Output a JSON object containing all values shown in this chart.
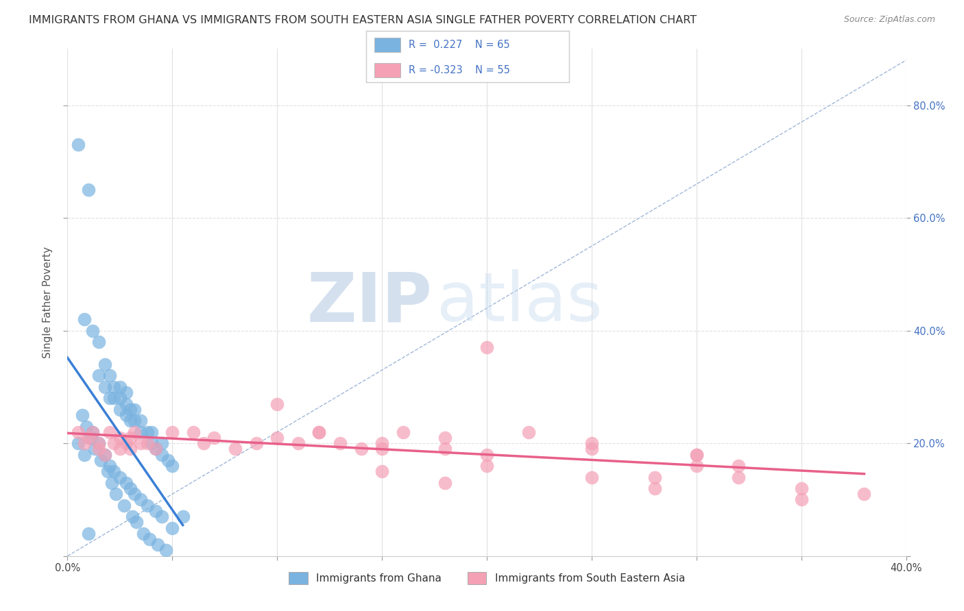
{
  "title": "IMMIGRANTS FROM GHANA VS IMMIGRANTS FROM SOUTH EASTERN ASIA SINGLE FATHER POVERTY CORRELATION CHART",
  "source": "Source: ZipAtlas.com",
  "ylabel": "Single Father Poverty",
  "legend_label1": "Immigrants from Ghana",
  "legend_label2": "Immigrants from South Eastern Asia",
  "R1": 0.227,
  "N1": 65,
  "R2": -0.323,
  "N2": 55,
  "color1": "#7ab3e0",
  "color2": "#f4a0b5",
  "trendline1_color": "#3a7fd5",
  "trendline2_color": "#e8608a",
  "xlim": [
    0.0,
    0.4
  ],
  "ylim": [
    0.0,
    0.9
  ],
  "xticks": [
    0.0,
    0.05,
    0.1,
    0.15,
    0.2,
    0.25,
    0.3,
    0.35,
    0.4
  ],
  "yticks": [
    0.0,
    0.2,
    0.4,
    0.6,
    0.8
  ],
  "xticklabels": [
    "0.0%",
    "",
    "",
    "",
    "",
    "",
    "",
    "",
    "40.0%"
  ],
  "yticklabels": [
    "",
    "20.0%",
    "40.0%",
    "60.0%",
    "80.0%"
  ],
  "watermark_zip": "ZIP",
  "watermark_atlas": "atlas",
  "background_color": "#ffffff",
  "grid_color": "#e0e0e0",
  "title_fontsize": 11.5,
  "axis_label_fontsize": 11,
  "tick_fontsize": 10.5,
  "right_ytick_color": "#4472c4",
  "legend_R_color": "#4472c4",
  "ghana_x": [
    0.005,
    0.01,
    0.012,
    0.015,
    0.015,
    0.018,
    0.018,
    0.02,
    0.02,
    0.022,
    0.022,
    0.025,
    0.025,
    0.025,
    0.028,
    0.028,
    0.028,
    0.03,
    0.03,
    0.032,
    0.032,
    0.035,
    0.035,
    0.038,
    0.04,
    0.04,
    0.042,
    0.045,
    0.045,
    0.048,
    0.05,
    0.005,
    0.008,
    0.012,
    0.015,
    0.018,
    0.02,
    0.022,
    0.025,
    0.028,
    0.03,
    0.032,
    0.035,
    0.038,
    0.042,
    0.045,
    0.05,
    0.007,
    0.009,
    0.011,
    0.013,
    0.016,
    0.019,
    0.021,
    0.023,
    0.027,
    0.031,
    0.033,
    0.036,
    0.039,
    0.043,
    0.047,
    0.008,
    0.01,
    0.055
  ],
  "ghana_y": [
    0.73,
    0.65,
    0.4,
    0.32,
    0.38,
    0.3,
    0.34,
    0.28,
    0.32,
    0.28,
    0.3,
    0.26,
    0.28,
    0.3,
    0.25,
    0.27,
    0.29,
    0.24,
    0.26,
    0.24,
    0.26,
    0.22,
    0.24,
    0.22,
    0.2,
    0.22,
    0.19,
    0.18,
    0.2,
    0.17,
    0.16,
    0.2,
    0.42,
    0.22,
    0.2,
    0.18,
    0.16,
    0.15,
    0.14,
    0.13,
    0.12,
    0.11,
    0.1,
    0.09,
    0.08,
    0.07,
    0.05,
    0.25,
    0.23,
    0.21,
    0.19,
    0.17,
    0.15,
    0.13,
    0.11,
    0.09,
    0.07,
    0.06,
    0.04,
    0.03,
    0.02,
    0.01,
    0.18,
    0.04,
    0.07
  ],
  "sea_x": [
    0.005,
    0.008,
    0.01,
    0.012,
    0.015,
    0.015,
    0.018,
    0.02,
    0.022,
    0.025,
    0.025,
    0.028,
    0.03,
    0.03,
    0.032,
    0.035,
    0.038,
    0.042,
    0.05,
    0.06,
    0.065,
    0.07,
    0.08,
    0.09,
    0.1,
    0.11,
    0.12,
    0.13,
    0.14,
    0.15,
    0.16,
    0.18,
    0.1,
    0.12,
    0.15,
    0.18,
    0.2,
    0.2,
    0.22,
    0.25,
    0.25,
    0.28,
    0.3,
    0.3,
    0.32,
    0.35,
    0.35,
    0.38,
    0.3,
    0.32,
    0.15,
    0.18,
    0.2,
    0.25,
    0.28
  ],
  "sea_y": [
    0.22,
    0.2,
    0.21,
    0.22,
    0.2,
    0.19,
    0.18,
    0.22,
    0.2,
    0.21,
    0.19,
    0.2,
    0.21,
    0.19,
    0.22,
    0.2,
    0.2,
    0.19,
    0.22,
    0.22,
    0.2,
    0.21,
    0.19,
    0.2,
    0.21,
    0.2,
    0.22,
    0.2,
    0.19,
    0.19,
    0.22,
    0.21,
    0.27,
    0.22,
    0.2,
    0.19,
    0.18,
    0.37,
    0.22,
    0.2,
    0.19,
    0.14,
    0.18,
    0.16,
    0.14,
    0.12,
    0.1,
    0.11,
    0.18,
    0.16,
    0.15,
    0.13,
    0.16,
    0.14,
    0.12
  ]
}
